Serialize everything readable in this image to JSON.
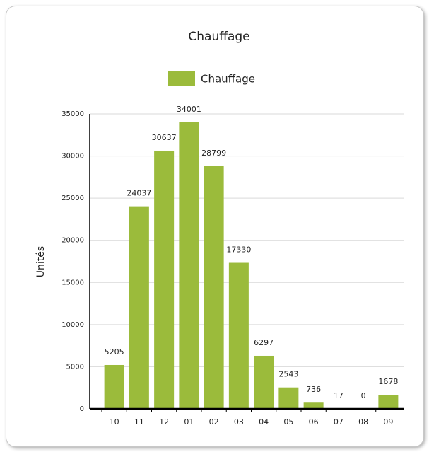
{
  "chart_data": {
    "type": "bar",
    "title": "Chauffage",
    "y_label": "Unités",
    "categories": [
      "10",
      "11",
      "12",
      "01",
      "02",
      "03",
      "04",
      "05",
      "06",
      "07",
      "08",
      "09"
    ],
    "series": [
      {
        "name": "Chauffage",
        "color": "#9bbb3b",
        "values": [
          5205,
          24037,
          30637,
          34001,
          28799,
          17330,
          6297,
          2543,
          736,
          17,
          0,
          1678
        ]
      }
    ],
    "ylim": [
      0,
      35000
    ],
    "yticks": [
      0,
      5000,
      10000,
      15000,
      20000,
      25000,
      30000,
      35000
    ],
    "grid": true,
    "legend": "top"
  }
}
